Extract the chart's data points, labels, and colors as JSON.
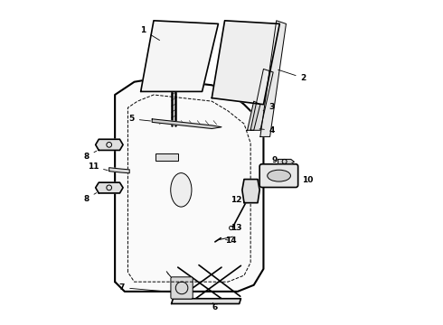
{
  "bg_color": "#ffffff",
  "line_color": "#000000",
  "label_color": "#000000",
  "lw_main": 1.2,
  "lw_thin": 0.7,
  "lw_thick": 1.5
}
